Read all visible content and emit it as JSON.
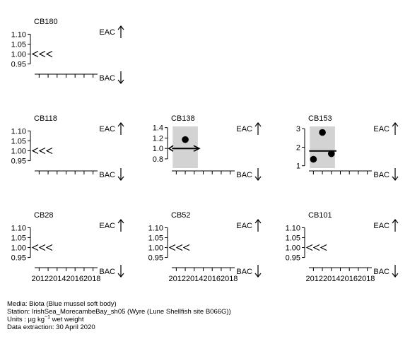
{
  "chart_data": [
    {
      "type": "scatter",
      "title": "CB180",
      "yticks": [
        "1.10",
        "1.05",
        "1.00",
        "0.95"
      ],
      "ytick_values": [
        1.1,
        1.05,
        1.0,
        0.95
      ],
      "ylim": [
        0.92,
        1.13
      ],
      "xlim": [
        2011.5,
        2018.5
      ],
      "xticks": [
        2012,
        2013,
        2014,
        2015,
        2016,
        2017,
        2018
      ],
      "xtick_labels": [],
      "points": [],
      "shaded": false,
      "trend_line": false,
      "bac_flag": "<<<",
      "bac_flag_value": 1.0,
      "eac_label": "EAC",
      "bac_label": "BAC"
    },
    {
      "type": "scatter",
      "title": "CB118",
      "yticks": [
        "1.10",
        "1.05",
        "1.00",
        "0.95"
      ],
      "ytick_values": [
        1.1,
        1.05,
        1.0,
        0.95
      ],
      "ylim": [
        0.92,
        1.13
      ],
      "xlim": [
        2011.5,
        2018.5
      ],
      "xticks": [
        2012,
        2013,
        2014,
        2015,
        2016,
        2017,
        2018
      ],
      "xtick_labels": [],
      "points": [],
      "shaded": false,
      "trend_line": false,
      "bac_flag": "<<<",
      "bac_flag_value": 1.0,
      "eac_label": "EAC",
      "bac_label": "BAC"
    },
    {
      "type": "scatter",
      "title": "CB138",
      "yticks": [
        "1.4",
        "1.2",
        "1.0",
        "0.8"
      ],
      "ytick_values": [
        1.4,
        1.2,
        1.0,
        0.8
      ],
      "ylim": [
        0.65,
        1.45
      ],
      "xlim": [
        2011.5,
        2018.5
      ],
      "xticks": [
        2012,
        2013,
        2014,
        2015,
        2016,
        2017,
        2018
      ],
      "xtick_labels": [],
      "points": [
        {
          "x": 2013,
          "y": 1.17
        }
      ],
      "shaded": true,
      "shade_x": [
        2011.6,
        2014.4
      ],
      "trend_line": true,
      "trend": [
        [
          2012,
          1.0
        ],
        [
          2014.4,
          1.0
        ]
      ],
      "bac_flag": "arrow-left",
      "bac_flag_value": 1.0,
      "eac_label": "EAC",
      "bac_label": "BAC"
    },
    {
      "type": "scatter",
      "title": "CB153",
      "yticks": [
        "3",
        "2",
        "1"
      ],
      "ytick_values": [
        3,
        2,
        1
      ],
      "ylim": [
        0.95,
        3.2
      ],
      "xlim": [
        2011.5,
        2018.5
      ],
      "xticks": [
        2012,
        2013,
        2014,
        2015,
        2016,
        2017,
        2018
      ],
      "xtick_labels": [],
      "points": [
        {
          "x": 2012,
          "y": 1.35
        },
        {
          "x": 2013,
          "y": 2.8
        },
        {
          "x": 2014,
          "y": 1.65
        }
      ],
      "shaded": true,
      "shade_x": [
        2011.6,
        2014.4
      ],
      "trend_line": true,
      "trend": [
        [
          2012,
          1.8
        ],
        [
          2014.4,
          1.8
        ]
      ],
      "bac_flag": "",
      "eac_label": "EAC",
      "bac_label": "BAC"
    },
    {
      "type": "scatter",
      "title": "CB28",
      "yticks": [
        "1.10",
        "1.05",
        "1.00",
        "0.95"
      ],
      "ytick_values": [
        1.1,
        1.05,
        1.0,
        0.95
      ],
      "ylim": [
        0.92,
        1.13
      ],
      "xlim": [
        2011.5,
        2018.5
      ],
      "xticks": [
        2012,
        2013,
        2014,
        2015,
        2016,
        2017,
        2018
      ],
      "xtick_labels": [
        "2012",
        "2014",
        "2016",
        "2018"
      ],
      "points": [],
      "shaded": false,
      "trend_line": false,
      "bac_flag": "<<<",
      "bac_flag_value": 1.0,
      "eac_label": "EAC",
      "bac_label": "BAC"
    },
    {
      "type": "scatter",
      "title": "CB52",
      "yticks": [
        "1.10",
        "1.05",
        "1.00",
        "0.95"
      ],
      "ytick_values": [
        1.1,
        1.05,
        1.0,
        0.95
      ],
      "ylim": [
        0.92,
        1.13
      ],
      "xlim": [
        2011.5,
        2018.5
      ],
      "xticks": [
        2012,
        2013,
        2014,
        2015,
        2016,
        2017,
        2018
      ],
      "xtick_labels": [
        "2012",
        "2014",
        "2016",
        "2018"
      ],
      "points": [],
      "shaded": false,
      "trend_line": false,
      "bac_flag": "<<<",
      "bac_flag_value": 1.0,
      "eac_label": "EAC",
      "bac_label": "BAC"
    },
    {
      "type": "scatter",
      "title": "CB101",
      "yticks": [
        "1.10",
        "1.05",
        "1.00",
        "0.95"
      ],
      "ytick_values": [
        1.1,
        1.05,
        1.0,
        0.95
      ],
      "ylim": [
        0.92,
        1.13
      ],
      "xlim": [
        2011.5,
        2018.5
      ],
      "xticks": [
        2012,
        2013,
        2014,
        2015,
        2016,
        2017,
        2018
      ],
      "xtick_labels": [
        "2012",
        "2014",
        "2016",
        "2018"
      ],
      "points": [],
      "shaded": false,
      "trend_line": false,
      "bac_flag": "<<<",
      "bac_flag_value": 1.0,
      "eac_label": "EAC",
      "bac_label": "BAC"
    }
  ],
  "footer": {
    "media": "Media: Biota (Blue mussel soft body)",
    "station": "Station: IrishSea_MorecambeBay_sh05 (Wyre (Lune Shellfish site B066G))",
    "units_prefix": "Units : µg kg",
    "units_exponent": "−1",
    "units_suffix": " wet weight",
    "extraction": "Data extraction: 30 April 2020"
  },
  "colors": {
    "shade": "#d3d3d3",
    "ink": "#000000"
  }
}
